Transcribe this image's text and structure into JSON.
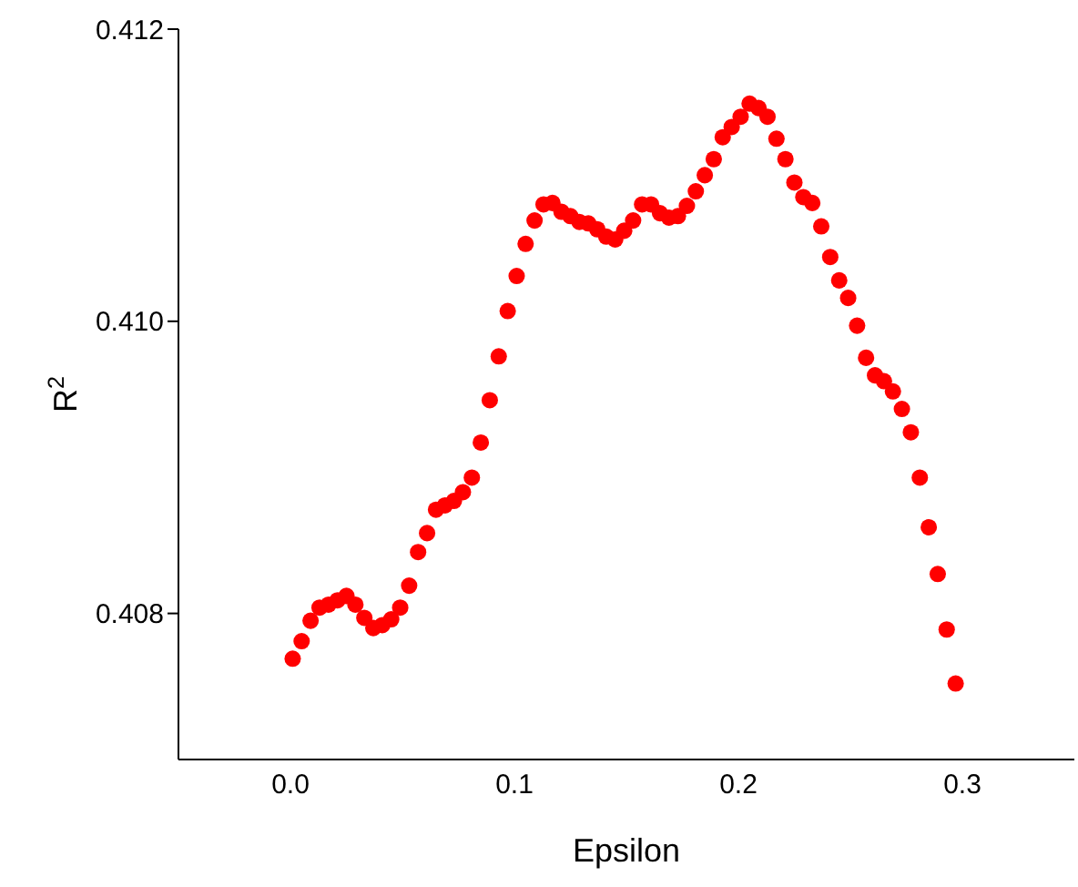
{
  "chart_data": {
    "type": "scatter",
    "xlabel": "Epsilon",
    "ylabel": "R$^{2}$",
    "x": [
      0.001,
      0.005,
      0.009,
      0.013,
      0.017,
      0.021,
      0.025,
      0.029,
      0.033,
      0.037,
      0.041,
      0.045,
      0.049,
      0.053,
      0.057,
      0.061,
      0.065,
      0.069,
      0.073,
      0.077,
      0.081,
      0.085,
      0.089,
      0.093,
      0.097,
      0.101,
      0.105,
      0.109,
      0.113,
      0.117,
      0.121,
      0.125,
      0.129,
      0.133,
      0.137,
      0.141,
      0.145,
      0.149,
      0.153,
      0.157,
      0.161,
      0.165,
      0.169,
      0.173,
      0.177,
      0.181,
      0.185,
      0.189,
      0.193,
      0.197,
      0.201,
      0.205,
      0.209,
      0.213,
      0.217,
      0.221,
      0.225,
      0.229,
      0.233,
      0.237,
      0.241,
      0.245,
      0.249,
      0.253,
      0.257,
      0.261,
      0.265,
      0.269,
      0.273,
      0.277,
      0.281,
      0.285,
      0.289,
      0.293,
      0.297
    ],
    "series": [
      {
        "color": "#ff0000",
        "values": [
          0.40769,
          0.40781,
          0.40795,
          0.40804,
          0.40806,
          0.40809,
          0.40812,
          0.40806,
          0.40797,
          0.4079,
          0.40792,
          0.40796,
          0.40804,
          0.40819,
          0.40842,
          0.40855,
          0.40871,
          0.40874,
          0.40877,
          0.40883,
          0.40893,
          0.40917,
          0.40946,
          0.40976,
          0.41007,
          0.41031,
          0.41053,
          0.41069,
          0.4108,
          0.41081,
          0.41075,
          0.41072,
          0.41068,
          0.41067,
          0.41063,
          0.41058,
          0.41056,
          0.41062,
          0.41069,
          0.4108,
          0.4108,
          0.41074,
          0.41071,
          0.41072,
          0.41079,
          0.41089,
          0.411,
          0.41111,
          0.41126,
          0.41133,
          0.4114,
          0.41149,
          0.41146,
          0.4114,
          0.41125,
          0.41111,
          0.41095,
          0.41085,
          0.41081,
          0.41065,
          0.41044,
          0.41028,
          0.41016,
          0.40997,
          0.40975,
          0.40963,
          0.40959,
          0.40952,
          0.4094,
          0.40924,
          0.40893,
          0.40859,
          0.40827,
          0.40789,
          0.40752
        ]
      }
    ],
    "xlim": [
      -0.05,
      0.35
    ],
    "xticks": [
      {
        "value": 0,
        "label": "0.0"
      },
      0.1,
      0.2,
      0.3
    ],
    "ylim": [
      0.407,
      0.412
    ],
    "yticks": [
      0.408,
      {
        "value": 0.41,
        "label": "0.410"
      },
      0.412
    ],
    "marker": "circle",
    "grid": false,
    "legend": false
  }
}
